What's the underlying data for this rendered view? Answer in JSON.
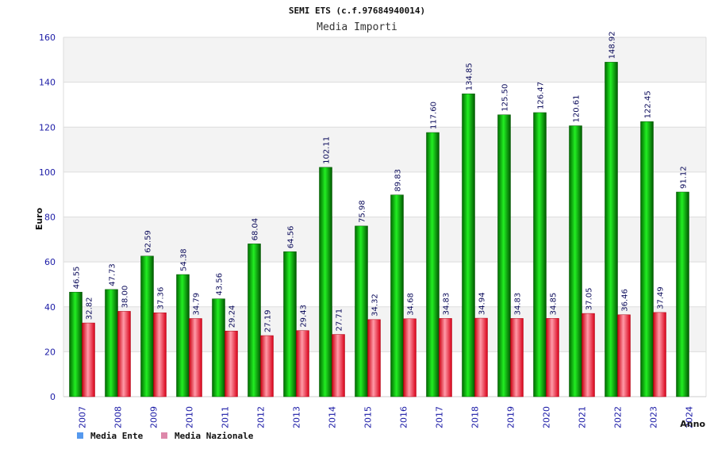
{
  "chart_data": {
    "type": "bar",
    "title": "SEMI ETS (c.f.97684940014)",
    "subtitle": "Media Importi",
    "xlabel": "Anno",
    "ylabel": "Euro",
    "ylim": [
      0,
      160
    ],
    "yticks": [
      0,
      20,
      40,
      60,
      80,
      100,
      120,
      140,
      160
    ],
    "grid": true,
    "legend_position": "bottom-left",
    "categories": [
      "2007",
      "2008",
      "2009",
      "2010",
      "2011",
      "2012",
      "2013",
      "2014",
      "2015",
      "2016",
      "2017",
      "2018",
      "2019",
      "2020",
      "2021",
      "2022",
      "2023",
      "2024"
    ],
    "series": [
      {
        "name": "Media Ente",
        "color": "#00aa00",
        "legend_color": "#5599ee",
        "values": [
          46.55,
          47.73,
          62.59,
          54.38,
          43.56,
          68.04,
          64.56,
          102.11,
          75.98,
          89.83,
          117.6,
          134.85,
          125.5,
          126.47,
          120.61,
          148.92,
          122.45,
          91.12
        ],
        "labels": [
          "46.55",
          "47.73",
          "62.59",
          "54.38",
          "43.56",
          "68.04",
          "64.56",
          "102.11",
          "75.98",
          "89.83",
          "117.60",
          "134.85",
          "125.50",
          "126.47",
          "120.61",
          "148.92",
          "122.45",
          "91.12"
        ]
      },
      {
        "name": "Media Nazionale",
        "color": "#ee2233",
        "legend_color": "#dd88aa",
        "values": [
          32.82,
          38.0,
          37.36,
          34.79,
          29.24,
          27.19,
          29.43,
          27.71,
          34.32,
          34.68,
          34.83,
          34.94,
          34.83,
          34.85,
          37.05,
          36.46,
          37.49,
          null
        ],
        "labels": [
          "32.82",
          "38.00",
          "37.36",
          "34.79",
          "29.24",
          "27.19",
          "29.43",
          "27.71",
          "34.32",
          "34.68",
          "34.83",
          "34.94",
          "34.83",
          "34.85",
          "37.05",
          "36.46",
          "37.49",
          ""
        ]
      }
    ]
  }
}
